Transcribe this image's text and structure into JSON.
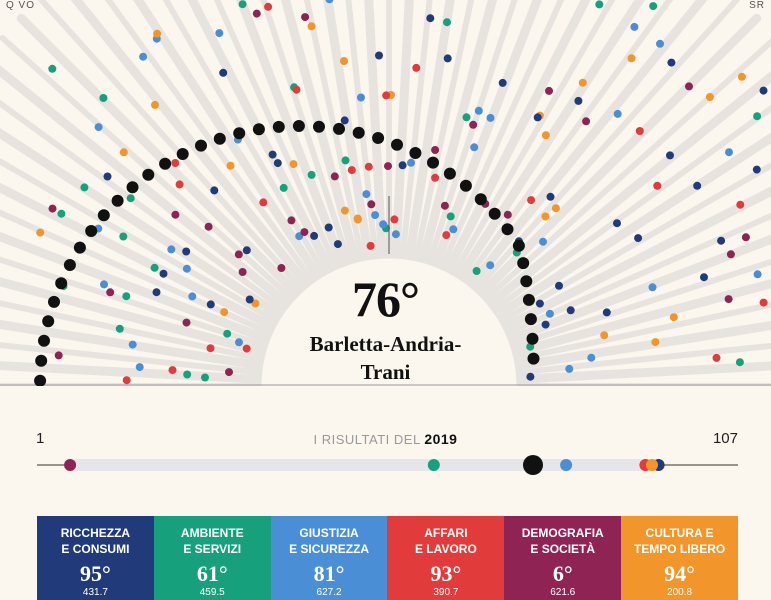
{
  "corners": {
    "left": "Q VO",
    "right": "SR"
  },
  "rank": {
    "value": "76°",
    "province_line1": "Barletta-Andria-",
    "province_line2": "Trani"
  },
  "timeline": {
    "min_label": "1",
    "max_label": "107",
    "title": "I RISULTATI DEL",
    "year": "2019"
  },
  "colors": {
    "ricchezza": "#213a79",
    "ambiente": "#16a17c",
    "giustizia": "#4a8fd6",
    "affari": "#e23b3b",
    "demografia": "#8f2353",
    "cultura": "#f2952b",
    "overall": "#111111",
    "track": "#e6e6e8",
    "ray": "#e7e4e0"
  },
  "categories": [
    {
      "id": "ricchezza",
      "line1": "Ricchezza",
      "line2": "e consumi",
      "rank": "95°",
      "value": "431.7",
      "rank_num": 95,
      "color": "#213a79"
    },
    {
      "id": "ambiente",
      "line1": "Ambiente",
      "line2": "e servizi",
      "rank": "61°",
      "value": "459.5",
      "rank_num": 61,
      "color": "#16a17c"
    },
    {
      "id": "giustizia",
      "line1": "Giustizia",
      "line2": "e sicurezza",
      "rank": "81°",
      "value": "627.2",
      "rank_num": 81,
      "color": "#4a8fd6"
    },
    {
      "id": "affari",
      "line1": "Affari",
      "line2": "e lavoro",
      "rank": "93°",
      "value": "390.7",
      "rank_num": 93,
      "color": "#e23b3b"
    },
    {
      "id": "demografia",
      "line1": "Demografia",
      "line2": "e società",
      "rank": "6°",
      "value": "621.6",
      "rank_num": 6,
      "color": "#8f2353"
    },
    {
      "id": "cultura",
      "line1": "Cultura e",
      "line2": "tempo libero",
      "rank": "94°",
      "value": "200.8",
      "rank_num": 94,
      "color": "#f2952b"
    }
  ],
  "chart_data": {
    "type": "scatter",
    "title": "I RISULTATI DEL 2019",
    "xlabel": "",
    "ylabel": "",
    "xlim": [
      1,
      107
    ],
    "highlight": {
      "name": "Barletta-Andria-Trani",
      "overall_rank": 76
    },
    "series": [
      {
        "name": "Ricchezza e consumi",
        "x": [
          95
        ]
      },
      {
        "name": "Ambiente e servizi",
        "x": [
          61
        ]
      },
      {
        "name": "Giustizia e sicurezza",
        "x": [
          81
        ]
      },
      {
        "name": "Affari e lavoro",
        "x": [
          93
        ]
      },
      {
        "name": "Demografia e società",
        "x": [
          6
        ]
      },
      {
        "name": "Cultura e tempo libero",
        "x": [
          94
        ]
      }
    ]
  }
}
